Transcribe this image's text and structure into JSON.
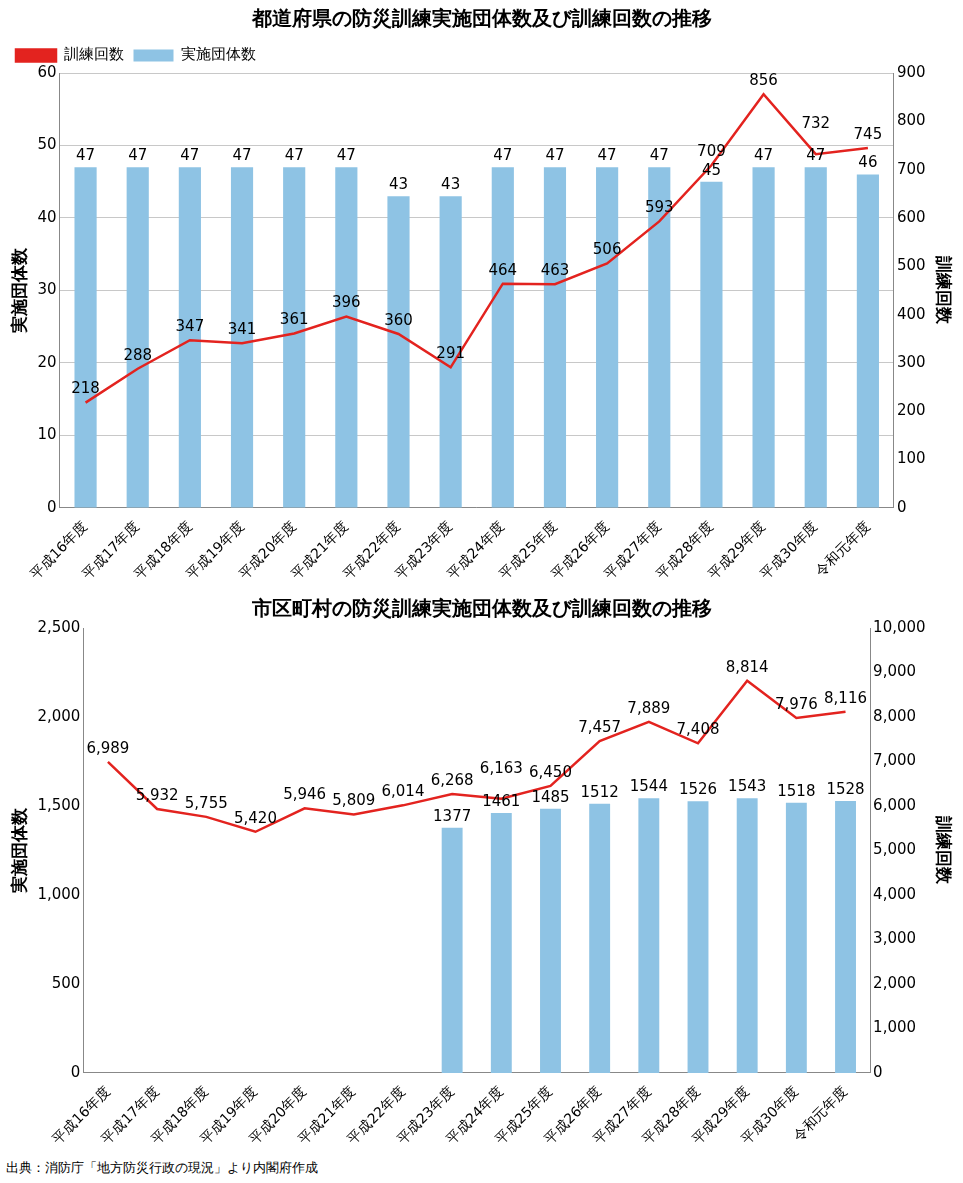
{
  "chart_data": [
    {
      "type": "bar",
      "title": "都道府県の防災訓練実施団体数及び訓練回数の推移",
      "ylabel": "実施団体数",
      "y2label": "訓練回数",
      "categories": [
        "平成16年度",
        "平成17年度",
        "平成18年度",
        "平成19年度",
        "平成20年度",
        "平成21年度",
        "平成22年度",
        "平成23年度",
        "平成24年度",
        "平成25年度",
        "平成26年度",
        "平成27年度",
        "平成28年度",
        "平成29年度",
        "平成30年度",
        "令和元年度"
      ],
      "series": [
        {
          "name": "実施団体数",
          "type": "bar",
          "color": "#8ec3e4",
          "values": [
            47,
            47,
            47,
            47,
            47,
            47,
            43,
            43,
            47,
            47,
            47,
            47,
            45,
            47,
            47,
            46
          ]
        },
        {
          "name": "訓練回数",
          "type": "line",
          "axis": "y2",
          "color": "#e3231f",
          "values": [
            218,
            288,
            347,
            341,
            361,
            396,
            360,
            291,
            464,
            463,
            506,
            593,
            709,
            856,
            732,
            745
          ]
        }
      ],
      "ylim": [
        0,
        60
      ],
      "yticks": [
        0,
        10,
        20,
        30,
        40,
        50,
        60
      ],
      "y2lim": [
        0,
        900
      ],
      "y2ticks": [
        0,
        100,
        200,
        300,
        400,
        500,
        600,
        700,
        800,
        900
      ],
      "grid": true,
      "legend": "top-left",
      "data_labels": true
    },
    {
      "type": "bar",
      "title": "市区町村の防災訓練実施団体数及び訓練回数の推移",
      "ylabel": "実施団体数",
      "y2label": "訓練回数",
      "categories": [
        "平成16年度",
        "平成17年度",
        "平成18年度",
        "平成19年度",
        "平成20年度",
        "平成21年度",
        "平成22年度",
        "平成23年度",
        "平成24年度",
        "平成25年度",
        "平成26年度",
        "平成27年度",
        "平成28年度",
        "平成29年度",
        "平成30年度",
        "令和元年度"
      ],
      "series": [
        {
          "name": "実施団体数",
          "type": "bar",
          "color": "#8ec3e4",
          "values": [
            null,
            null,
            null,
            null,
            null,
            null,
            null,
            1377,
            1461,
            1485,
            1512,
            1544,
            1526,
            1543,
            1518,
            1528
          ]
        },
        {
          "name": "訓練回数",
          "type": "line",
          "axis": "y2",
          "color": "#e3231f",
          "values": [
            6989,
            5932,
            5755,
            5420,
            5946,
            5809,
            6014,
            6268,
            6163,
            6450,
            7457,
            7889,
            7408,
            8814,
            7976,
            8116
          ],
          "value_labels": [
            "6,989",
            "5,932",
            "5,755",
            "5,420",
            "5,946",
            "5,809",
            "6,014",
            "6,268",
            "6,163",
            "6,450",
            "7,457",
            "7,889",
            "7,408",
            "8,814",
            "7,976",
            "8,116"
          ]
        }
      ],
      "ylim": [
        0,
        2500
      ],
      "yticks": [
        0,
        500,
        {
          "value": 1000,
          "label": "1,000"
        },
        {
          "value": 1500,
          "label": "1,500"
        },
        {
          "value": 2000,
          "label": "2,000"
        },
        {
          "value": 2500,
          "label": "2,500"
        }
      ],
      "y2lim": [
        0,
        10000
      ],
      "y2ticks": [
        0,
        {
          "value": 1000,
          "label": "1,000"
        },
        {
          "value": 2000,
          "label": "2,000"
        },
        {
          "value": 3000,
          "label": "3,000"
        },
        {
          "value": 4000,
          "label": "4,000"
        },
        {
          "value": 5000,
          "label": "5,000"
        },
        {
          "value": 6000,
          "label": "6,000"
        },
        {
          "value": 7000,
          "label": "7,000"
        },
        {
          "value": 8000,
          "label": "8,000"
        },
        {
          "value": 9000,
          "label": "9,000"
        },
        {
          "value": 10000,
          "label": "10,000"
        }
      ],
      "grid": false,
      "data_labels": true
    }
  ],
  "source": "出典：消防庁「地方防災行政の現況」より内閣府作成"
}
